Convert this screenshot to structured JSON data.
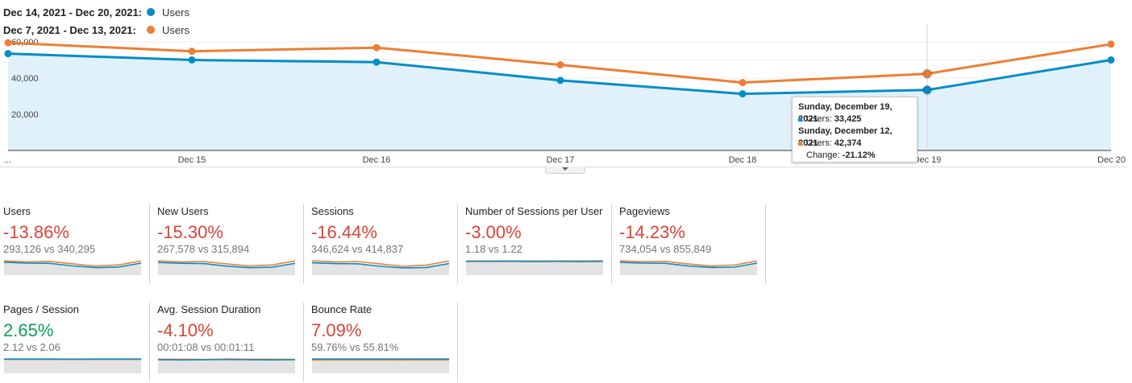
{
  "legend": [
    {
      "range": "Dec 14, 2021 - Dec 20, 2021:",
      "label": "Users",
      "color": "#058dc7"
    },
    {
      "range": "Dec 7, 2021 - Dec 13, 2021:",
      "label": "Users",
      "color": "#ed7e33"
    }
  ],
  "chart_data": {
    "type": "line",
    "categories": [
      "...",
      "Dec 15",
      "Dec 16",
      "Dec 17",
      "Dec 18",
      "Dec 19",
      "Dec 20"
    ],
    "series": [
      {
        "name": "Users",
        "period": "Dec 14, 2021 - Dec 20, 2021",
        "color": "#058dc7",
        "area_color": "#e1f1f9",
        "values": [
          53500,
          50000,
          48800,
          38700,
          31300,
          33425,
          50000
        ]
      },
      {
        "name": "Users",
        "period": "Dec 7, 2021 - Dec 13, 2021",
        "color": "#ed7e33",
        "values": [
          59500,
          54800,
          56800,
          47300,
          37500,
          42374,
          58700
        ]
      }
    ],
    "y_ticks": [
      20000,
      40000,
      60000
    ],
    "y_tick_labels": [
      "20,000",
      "40,000",
      "60,000"
    ],
    "ylim": [
      0,
      60000
    ],
    "grid": true
  },
  "tooltip": {
    "date1": "Sunday, December 19, 2021",
    "line1_label": "Users:",
    "line1_value": "33,425",
    "date2": "Sunday, December 12, 2021",
    "line2_label": "Users:",
    "line2_value": "42,374",
    "change_label": "Change:",
    "change_value": "-21.12%"
  },
  "scorecards": [
    {
      "title": "Users",
      "change": "-13.86%",
      "trend": "neg",
      "compare": "293,126 vs 340,295",
      "spark_current": [
        53500,
        50000,
        48800,
        38700,
        31300,
        33425,
        50000
      ],
      "spark_previous": [
        59500,
        54800,
        56800,
        47300,
        37500,
        42374,
        58700
      ]
    },
    {
      "title": "New Users",
      "change": "-15.30%",
      "trend": "neg",
      "compare": "267,578 vs 315,894",
      "spark_current": [
        46000,
        43000,
        42000,
        33000,
        27000,
        29000,
        43000
      ],
      "spark_previous": [
        52000,
        48000,
        49500,
        41000,
        33000,
        37000,
        51500
      ]
    },
    {
      "title": "Sessions",
      "change": "-16.44%",
      "trend": "neg",
      "compare": "346,624 vs 414,837",
      "spark_current": [
        63000,
        59000,
        58000,
        45000,
        37000,
        39000,
        59000
      ],
      "spark_previous": [
        73000,
        67000,
        69000,
        57000,
        45000,
        51000,
        72000
      ]
    },
    {
      "title": "Number of Sessions per User",
      "change": "-3.00%",
      "trend": "neg",
      "compare": "1.18 vs 1.22",
      "spark_current": [
        1.18,
        1.18,
        1.19,
        1.17,
        1.18,
        1.17,
        1.18
      ],
      "spark_previous": [
        1.22,
        1.22,
        1.22,
        1.21,
        1.22,
        1.22,
        1.23
      ]
    },
    {
      "title": "Pageviews",
      "change": "-14.23%",
      "trend": "neg",
      "compare": "734,054 vs 855,849",
      "spark_current": [
        134000,
        126000,
        123000,
        96000,
        80000,
        84000,
        126000
      ],
      "spark_previous": [
        150000,
        140000,
        143000,
        117000,
        95000,
        106000,
        148000
      ]
    },
    {
      "title": "Pages / Session",
      "change": "2.65%",
      "trend": "pos",
      "compare": "2.12 vs 2.06",
      "spark_current": [
        2.13,
        2.12,
        2.12,
        2.11,
        2.12,
        2.13,
        2.12
      ],
      "spark_previous": [
        2.07,
        2.06,
        2.06,
        2.05,
        2.06,
        2.06,
        2.07
      ]
    },
    {
      "title": "Avg. Session Duration",
      "change": "-4.10%",
      "trend": "neg",
      "compare": "00:01:08 vs 00:01:11",
      "spark_current": [
        68,
        67,
        68,
        69,
        68,
        67,
        68
      ],
      "spark_previous": [
        71,
        71,
        70,
        72,
        71,
        71,
        70
      ]
    },
    {
      "title": "Bounce Rate",
      "change": "7.09%",
      "trend": "neg",
      "compare": "59.76% vs 55.81%",
      "spark_current": [
        59.6,
        59.8,
        59.7,
        59.9,
        59.8,
        59.7,
        59.8
      ],
      "spark_previous": [
        55.7,
        55.8,
        55.9,
        55.8,
        55.7,
        55.9,
        55.8
      ]
    }
  ]
}
